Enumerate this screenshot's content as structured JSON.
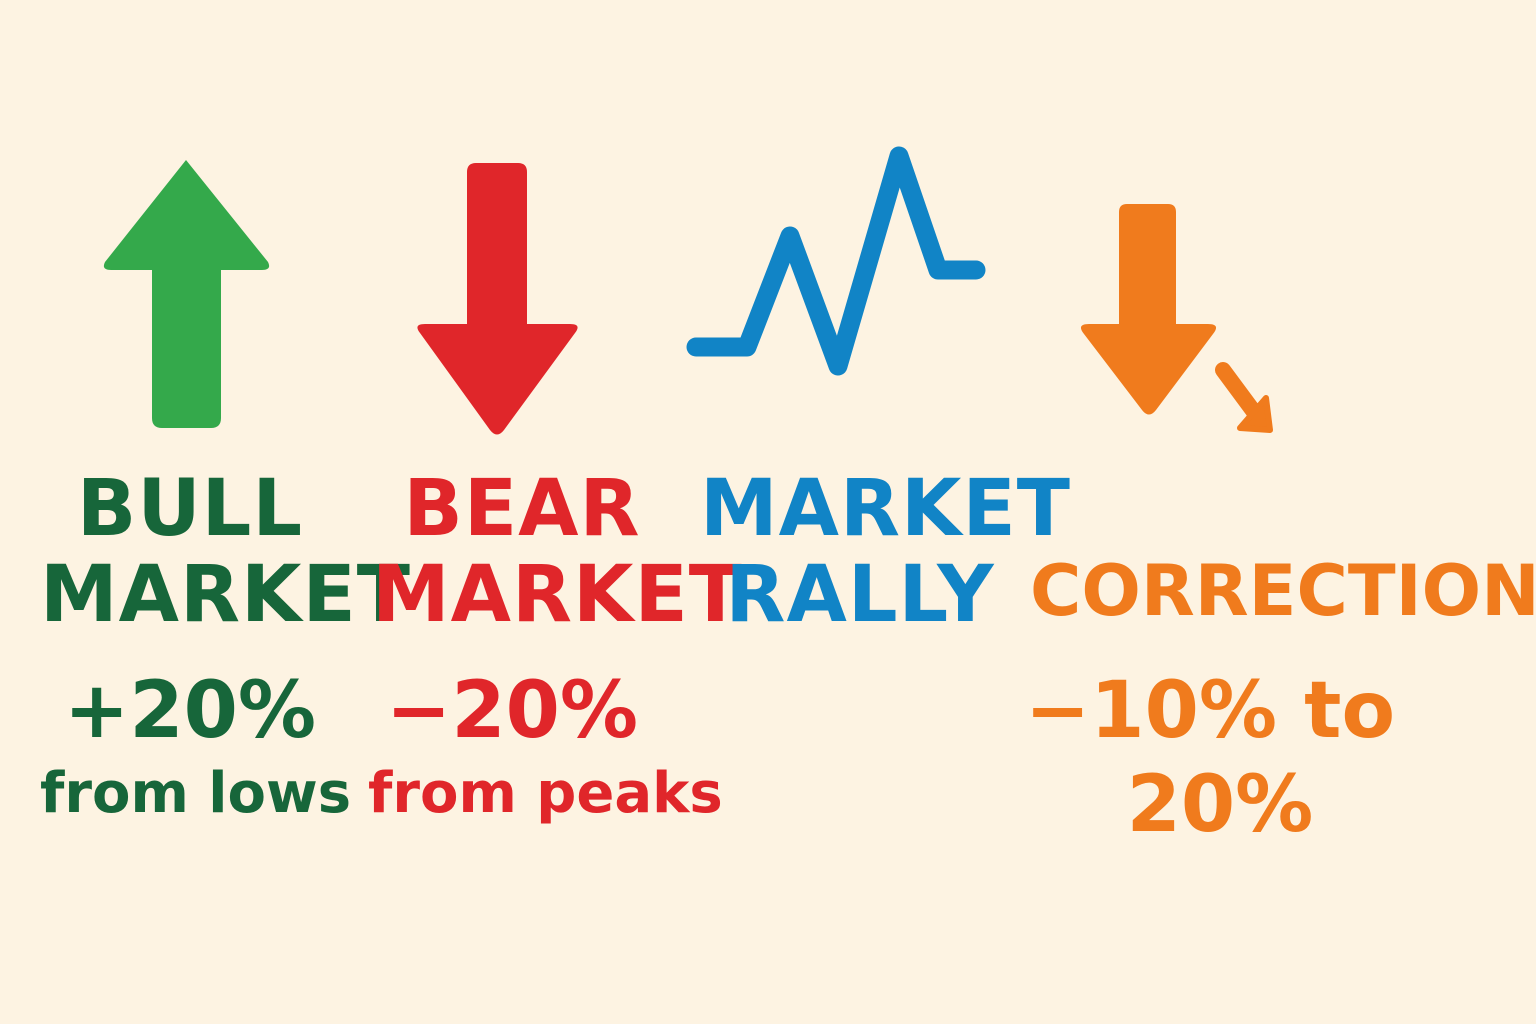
{
  "colors": {
    "bull_icon": "#34a94b",
    "bull_text": "#17663a",
    "bear": "#e0262a",
    "rally": "#1184c6",
    "correction": "#f07b1d",
    "background": "#fdf3e2"
  },
  "bull": {
    "icon": "up-arrow-icon",
    "line1": "BULL",
    "line2": "MARKET",
    "pct": "+20%",
    "desc": "from lows"
  },
  "bear": {
    "icon": "down-arrow-icon",
    "line1": "BEAR",
    "line2": "MARKET",
    "pct": "−20%",
    "desc": "from peaks"
  },
  "rally": {
    "icon": "zigzag-line-icon",
    "line1": "MARKET",
    "line2": "RALLY"
  },
  "correction": {
    "icon": "down-arrow-with-small-arrow-icon",
    "line1": "CORRECTION",
    "pct_line1": "−10% to",
    "pct_line2": "20%"
  }
}
